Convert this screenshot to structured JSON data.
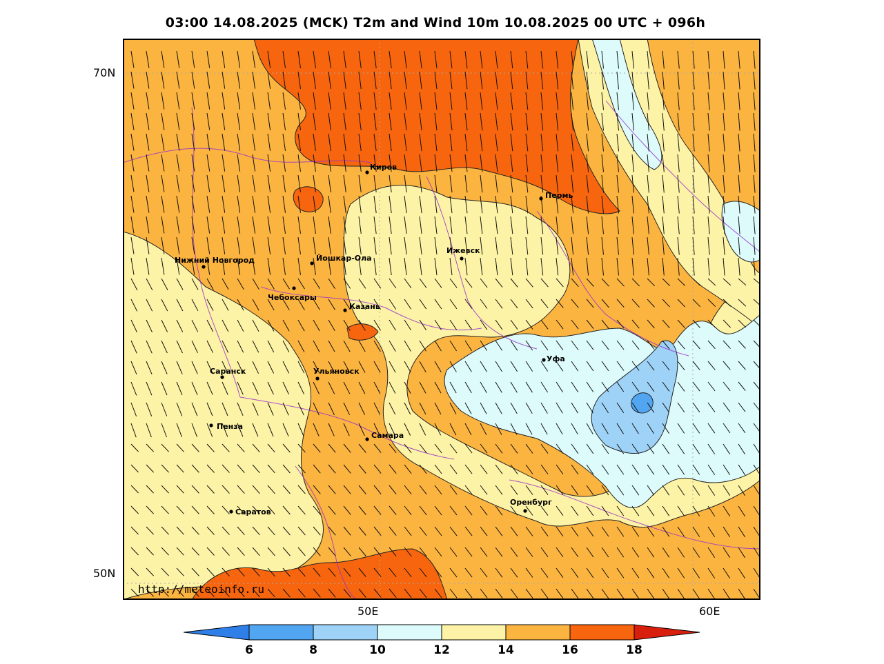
{
  "title": "03:00 14.08.2025 (MCK) T2m and Wind 10m 10.08.2025 00 UTC + 096h",
  "axes": {
    "lat_labels": [
      "70N",
      "50N"
    ],
    "lon_labels": [
      "50E",
      "60E"
    ]
  },
  "watermark": "http://meteoinfo.ru",
  "cities": [
    {
      "name": "Киров"
    },
    {
      "name": "Пермь"
    },
    {
      "name": "Нижний Новгород"
    },
    {
      "name": "Йошкар-Ола"
    },
    {
      "name": "Ижевск"
    },
    {
      "name": "Чебоксары"
    },
    {
      "name": "Казань"
    },
    {
      "name": "Уфа"
    },
    {
      "name": "Саранск"
    },
    {
      "name": "Ульяновск"
    },
    {
      "name": "Пенза"
    },
    {
      "name": "Самара"
    },
    {
      "name": "Оренбург"
    },
    {
      "name": "Саратов"
    }
  ],
  "colorbar": {
    "ticks": [
      "6",
      "8",
      "10",
      "12",
      "14",
      "16",
      "18"
    ],
    "colors": [
      "#2f7fe8",
      "#52a5f0",
      "#9fd2f7",
      "#ddfbfb",
      "#fdf3a6",
      "#fbb440",
      "#f7650e",
      "#d81e0c"
    ]
  }
}
